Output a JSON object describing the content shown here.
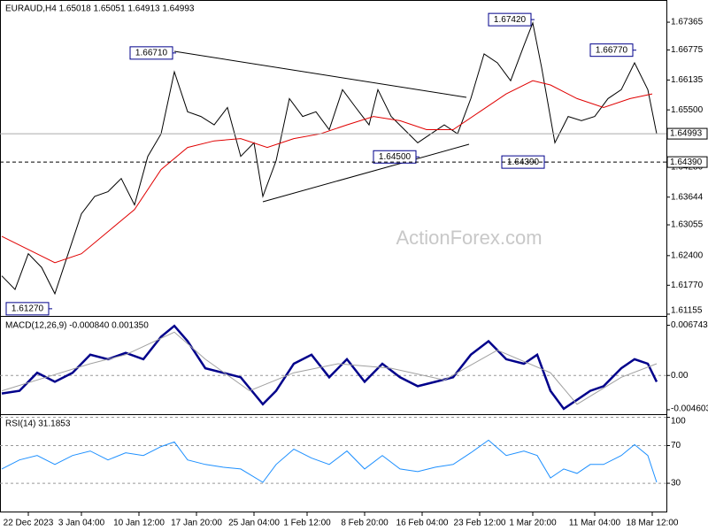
{
  "chart_data": [
    {
      "type": "line",
      "title": "EURAUD,H4  1.65018 1.65051 1.64913 1.64993",
      "watermark": "ActionForex.com",
      "xlim": [
        0,
        150
      ],
      "ylim": [
        1.61117,
        1.67818
      ],
      "yticks": [
        1.67365,
        1.66775,
        1.66135,
        {
          "value": 1.655,
          "label": "1.65500"
        },
        {
          "value": 1.6492,
          "label": "1.64920"
        },
        {
          "value": 1.6428,
          "label": "1.64280"
        },
        1.63644,
        1.63055,
        {
          "value": 1.624,
          "label": "1.62400"
        },
        {
          "value": 1.6177,
          "label": "1.61770"
        },
        1.61155
      ],
      "series": [
        {
          "color": "#000000",
          "x": [
            0,
            3,
            6,
            9,
            12,
            15,
            18,
            21,
            24,
            27,
            30,
            33,
            36,
            39,
            42,
            45,
            48,
            51,
            54,
            57,
            59,
            62,
            65,
            68,
            71,
            74,
            77,
            80,
            83,
            85,
            88,
            91,
            94,
            97,
            100,
            103,
            106,
            109,
            112,
            115,
            118,
            120,
            122,
            125,
            128,
            131,
            134,
            137,
            140,
            143,
            146,
            148
          ],
          "values": [
            1.6197,
            1.6168,
            1.6244,
            1.6215,
            1.6159,
            1.6244,
            1.6329,
            1.6366,
            1.6376,
            1.6404,
            1.6348,
            1.6451,
            1.6499,
            1.6631,
            1.6546,
            1.6536,
            1.6518,
            1.6555,
            1.6451,
            1.648,
            1.6366,
            1.6442,
            1.6574,
            1.6536,
            1.6546,
            1.6508,
            1.6593,
            1.6555,
            1.6518,
            1.6593,
            1.6536,
            1.6508,
            1.648,
            1.6499,
            1.6518,
            1.6499,
            1.6574,
            1.6669,
            1.665,
            1.6612,
            1.6687,
            1.6735,
            1.664,
            1.648,
            1.6536,
            1.6527,
            1.6536,
            1.6574,
            1.6593,
            1.665,
            1.6593,
            1.6499
          ]
        },
        {
          "color": "#e00000",
          "x": [
            0,
            6,
            12,
            18,
            24,
            30,
            36,
            42,
            48,
            54,
            60,
            66,
            72,
            78,
            84,
            90,
            96,
            102,
            108,
            114,
            120,
            124,
            130,
            136,
            142,
            147
          ],
          "values": [
            1.6281,
            1.6253,
            1.6225,
            1.6244,
            1.6291,
            1.6338,
            1.6423,
            1.647,
            1.6484,
            1.6489,
            1.647,
            1.6489,
            1.6499,
            1.6518,
            1.6536,
            1.6527,
            1.6508,
            1.6508,
            1.6546,
            1.6584,
            1.6612,
            1.6603,
            1.6574,
            1.6555,
            1.6574,
            1.6584
          ]
        }
      ],
      "annotations": [
        {
          "x": 120,
          "value": 1.6742,
          "label": "1.67420"
        },
        {
          "x": 143,
          "value": 1.6677,
          "label": "1.66770"
        },
        {
          "x": 39,
          "value": 1.6671,
          "label": "1.66710"
        },
        {
          "x": 94,
          "value": 1.645,
          "label": "1.64500"
        },
        {
          "x": 123,
          "value": 1.6439,
          "label": "1.64390"
        },
        {
          "x": 11,
          "value": 1.6127,
          "label": "1.61270"
        }
      ],
      "price_lines": [
        {
          "value": 1.64993,
          "label": "1.64993",
          "dashed": false
        },
        {
          "value": 1.6439,
          "label": "1.64390",
          "dashed": true
        }
      ]
    },
    {
      "type": "line",
      "title": "MACD(12,26,9) -0.000840 0.001350",
      "xlim": [
        0,
        150
      ],
      "ylim": [
        -0.0052,
        0.00787
      ],
      "yticks": [
        0.006743,
        {
          "value": 0,
          "label": "0.00"
        },
        -0.004603
      ],
      "zero_line": true,
      "series": [
        {
          "color": "#00008b",
          "x": [
            0,
            4,
            8,
            12,
            16,
            20,
            24,
            28,
            32,
            36,
            39,
            42,
            46,
            50,
            54,
            59,
            62,
            66,
            70,
            74,
            78,
            82,
            86,
            90,
            94,
            98,
            102,
            106,
            110,
            114,
            118,
            121,
            124,
            127,
            130,
            133,
            136,
            140,
            143,
            146,
            148
          ],
          "values": [
            -0.00242,
            -0.00206,
            0.00036,
            -0.00085,
            0.00036,
            0.00278,
            0.00218,
            0.00303,
            0.00218,
            0.0052,
            0.00666,
            0.0046,
            0.00097,
            0.00036,
            -0.00024,
            -0.00387,
            -0.00206,
            0.00157,
            0.00278,
            -0.00024,
            0.00218,
            -0.00085,
            0.00157,
            -0.00024,
            -0.00145,
            -0.00085,
            -0.00024,
            0.00278,
            0.0046,
            0.00218,
            0.00157,
            0.00278,
            -0.00206,
            -0.00448,
            -0.00327,
            -0.00206,
            -0.00145,
            0.00097,
            0.00218,
            0.00157,
            -0.00085
          ]
        },
        {
          "color": "#a0a0a0",
          "x": [
            0,
            10,
            20,
            28,
            39,
            46,
            56,
            66,
            76,
            88,
            100,
            112,
            124,
            130,
            140,
            148
          ],
          "values": [
            -0.00206,
            -0.00024,
            0.00157,
            0.00278,
            0.00581,
            0.00218,
            -0.00206,
            0.00036,
            0.00157,
            0.00097,
            -0.00061,
            0.00339,
            0.00036,
            -0.00387,
            -0.00024,
            0.00157
          ]
        }
      ]
    },
    {
      "type": "line",
      "title": "RSI(14) 31.1853",
      "xlim": [
        0,
        150
      ],
      "ylim": [
        0,
        102.4
      ],
      "yticks": [
        100,
        70,
        30
      ],
      "grid": true,
      "series": [
        {
          "color": "#1e90ff",
          "x": [
            0,
            4,
            8,
            12,
            16,
            20,
            24,
            28,
            32,
            36,
            39,
            42,
            46,
            50,
            54,
            59,
            62,
            66,
            70,
            74,
            78,
            82,
            86,
            90,
            94,
            98,
            102,
            106,
            110,
            114,
            118,
            121,
            124,
            127,
            130,
            133,
            136,
            140,
            143,
            146,
            148
          ],
          "values": [
            45.2,
            54.8,
            59.5,
            50,
            59.5,
            64.3,
            54.8,
            62.4,
            59.5,
            69,
            73.8,
            54.8,
            50,
            47.1,
            45.2,
            31,
            50,
            66.2,
            56.7,
            50,
            64.3,
            45.2,
            59.5,
            45.2,
            42.4,
            47.1,
            50,
            62.4,
            75.7,
            59.5,
            64.3,
            59.5,
            35.7,
            45.2,
            40.5,
            50,
            50,
            59.5,
            71,
            59.5,
            31
          ]
        }
      ],
      "xticks": [
        {
          "value": 6,
          "label": "22 Dec 2023"
        },
        {
          "value": 18,
          "label": "3 Jan 04:00"
        },
        {
          "value": 31,
          "label": "10 Jan 12:00"
        },
        {
          "value": 44,
          "label": "17 Jan 20:00"
        },
        {
          "value": 57,
          "label": "25 Jan 04:00"
        },
        {
          "value": 69,
          "label": "1 Feb 12:00"
        },
        {
          "value": 82,
          "label": "8 Feb 20:00"
        },
        {
          "value": 95,
          "label": "16 Feb 04:00"
        },
        {
          "value": 108,
          "label": "23 Feb 12:00"
        },
        {
          "value": 120,
          "label": "1 Mar 20:00"
        },
        {
          "value": 134,
          "label": "11 Mar 04:00"
        },
        {
          "value": 147,
          "label": "18 Mar 12:00"
        }
      ]
    }
  ]
}
